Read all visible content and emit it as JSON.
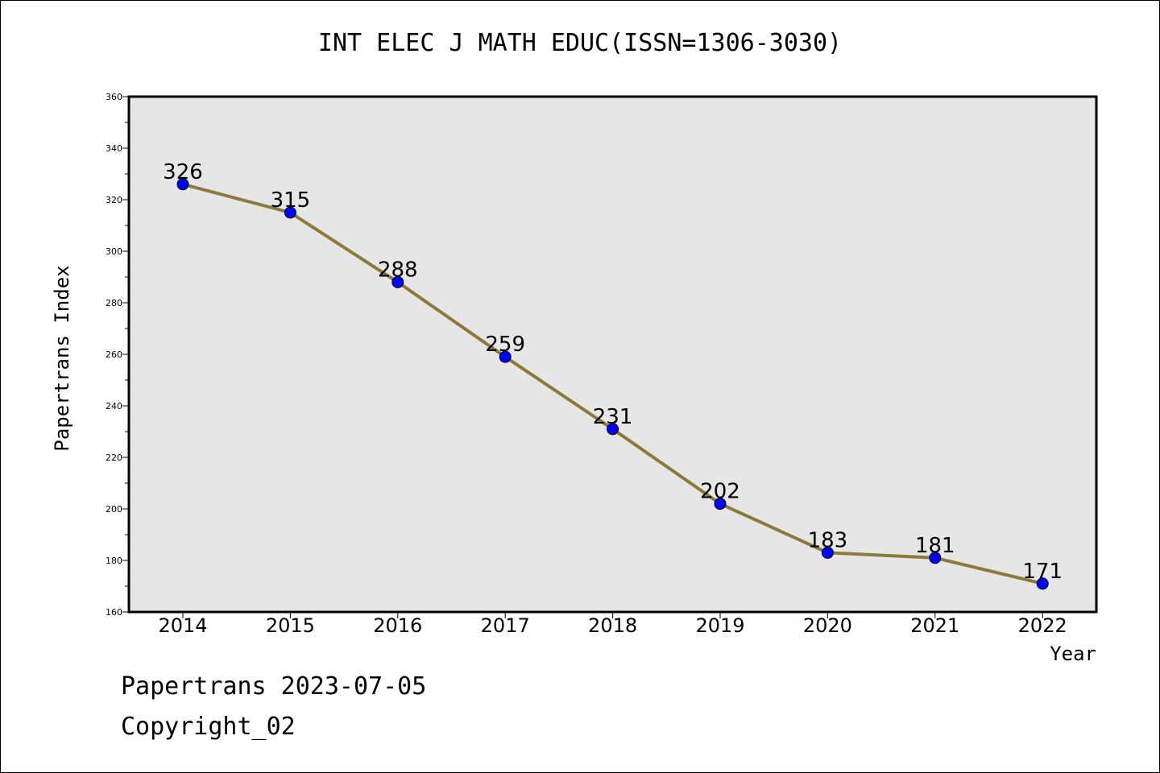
{
  "chart_data": {
    "type": "line",
    "title": "INT ELEC J MATH EDUC(ISSN=1306-3030)",
    "xlabel": "Year",
    "ylabel": "Papertrans Index",
    "categories": [
      "2014",
      "2015",
      "2016",
      "2017",
      "2018",
      "2019",
      "2020",
      "2021",
      "2022"
    ],
    "values": [
      326,
      315,
      288,
      259,
      231,
      202,
      183,
      181,
      171
    ],
    "ylim": [
      160,
      360
    ],
    "yticks": [
      160,
      180,
      200,
      220,
      240,
      260,
      280,
      300,
      320,
      340,
      360
    ],
    "grid": false,
    "colors": {
      "line": "#8b7a3a",
      "marker": "#0000ff",
      "plot_bg": "#e6e6e6"
    }
  },
  "footer": {
    "date": "Papertrans 2023-07-05",
    "copyright": "Copyright_02"
  }
}
